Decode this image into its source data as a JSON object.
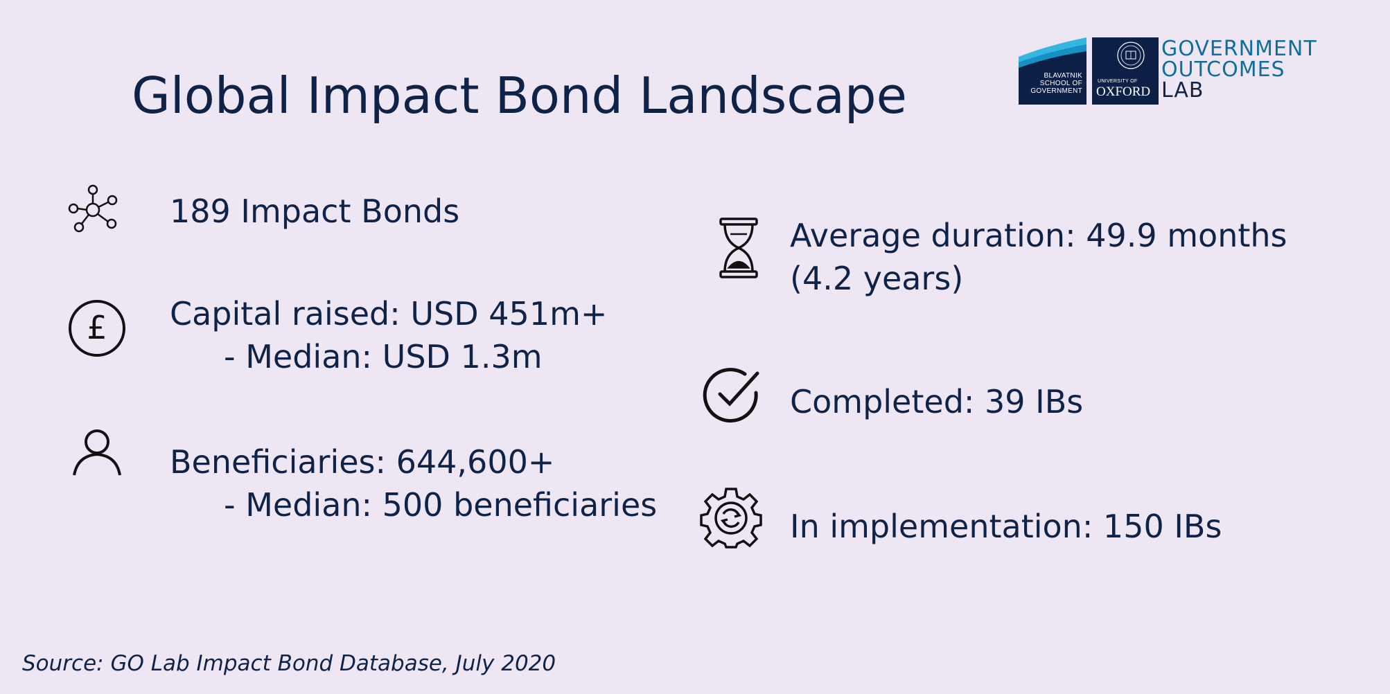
{
  "title": "Global Impact Bond Landscape",
  "logo": {
    "blavatnik": [
      "BLAVATNIK",
      "SCHOOL OF",
      "GOVERNMENT"
    ],
    "oxford_small": "UNIVERSITY OF",
    "oxford_big": "OXFORD",
    "golab": [
      "GOVERNMENT",
      "OUTCOMES",
      "LAB"
    ]
  },
  "stats_left": [
    {
      "icon": "network-icon",
      "text": "189 Impact Bonds",
      "sub": ""
    },
    {
      "icon": "pound-coin-icon",
      "text": "Capital raised: USD 451m+",
      "sub": "- Median: USD 1.3m"
    },
    {
      "icon": "person-icon",
      "text": "Beneficiaries: 644,600+",
      "sub": "- Median: 500 beneficiaries"
    }
  ],
  "stats_right": [
    {
      "icon": "hourglass-icon",
      "text": "Average duration: 49.9 months",
      "sub": "(4.2 years)"
    },
    {
      "icon": "checkmark-circle-icon",
      "text": "Completed: 39 IBs",
      "sub": ""
    },
    {
      "icon": "gear-refresh-icon",
      "text": "In implementation: 150 IBs",
      "sub": ""
    }
  ],
  "source": "Source: GO Lab Impact Bond Database, July 2020",
  "colors": {
    "background": "#efe6f4",
    "text": "#0f2348",
    "accent_blue": "#0e6f9c",
    "light_blue": "#35b6e0"
  }
}
